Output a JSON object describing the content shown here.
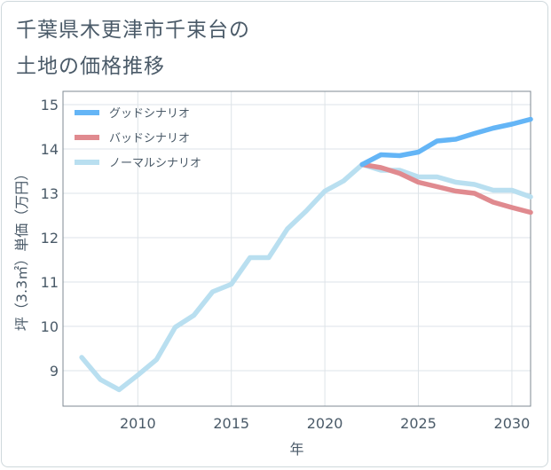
{
  "title": {
    "line1": "千葉県木更津市千束台の",
    "line2": "土地の価格推移"
  },
  "chart_data": {
    "type": "line",
    "xlabel": "年",
    "ylabel": "坪（3.3㎡）単価（万円）",
    "xlim": [
      2006,
      2031
    ],
    "ylim": [
      8.2,
      15.3
    ],
    "x_ticks": [
      2010,
      2015,
      2020,
      2025,
      2030
    ],
    "y_ticks": [
      9,
      10,
      11,
      12,
      13,
      14,
      15
    ],
    "grid": true,
    "legend_position": "top-left",
    "series": [
      {
        "name": "グッドシナリオ",
        "color": "#64b5f6",
        "x": [
          2022,
          2023,
          2024,
          2025,
          2026,
          2027,
          2028,
          2029,
          2030,
          2031
        ],
        "y": [
          13.65,
          13.87,
          13.85,
          13.93,
          14.18,
          14.22,
          14.35,
          14.47,
          14.56,
          14.67
        ]
      },
      {
        "name": "バッドシナリオ",
        "color": "#e08a8f",
        "x": [
          2022,
          2023,
          2024,
          2025,
          2026,
          2027,
          2028,
          2029,
          2030,
          2031
        ],
        "y": [
          13.65,
          13.58,
          13.45,
          13.25,
          13.15,
          13.05,
          13.0,
          12.8,
          12.68,
          12.57
        ]
      },
      {
        "name": "ノーマルシナリオ",
        "color": "#b9dff0",
        "x": [
          2007,
          2008,
          2009,
          2010,
          2011,
          2012,
          2013,
          2014,
          2015,
          2016,
          2017,
          2018,
          2019,
          2020,
          2021,
          2022,
          2023,
          2024,
          2025,
          2026,
          2027,
          2028,
          2029,
          2030,
          2031
        ],
        "y": [
          9.3,
          8.8,
          8.57,
          8.9,
          9.25,
          9.98,
          10.25,
          10.78,
          10.95,
          11.55,
          11.55,
          12.2,
          12.6,
          13.05,
          13.28,
          13.65,
          13.52,
          13.52,
          13.37,
          13.37,
          13.25,
          13.2,
          13.07,
          13.07,
          12.92
        ]
      }
    ]
  }
}
